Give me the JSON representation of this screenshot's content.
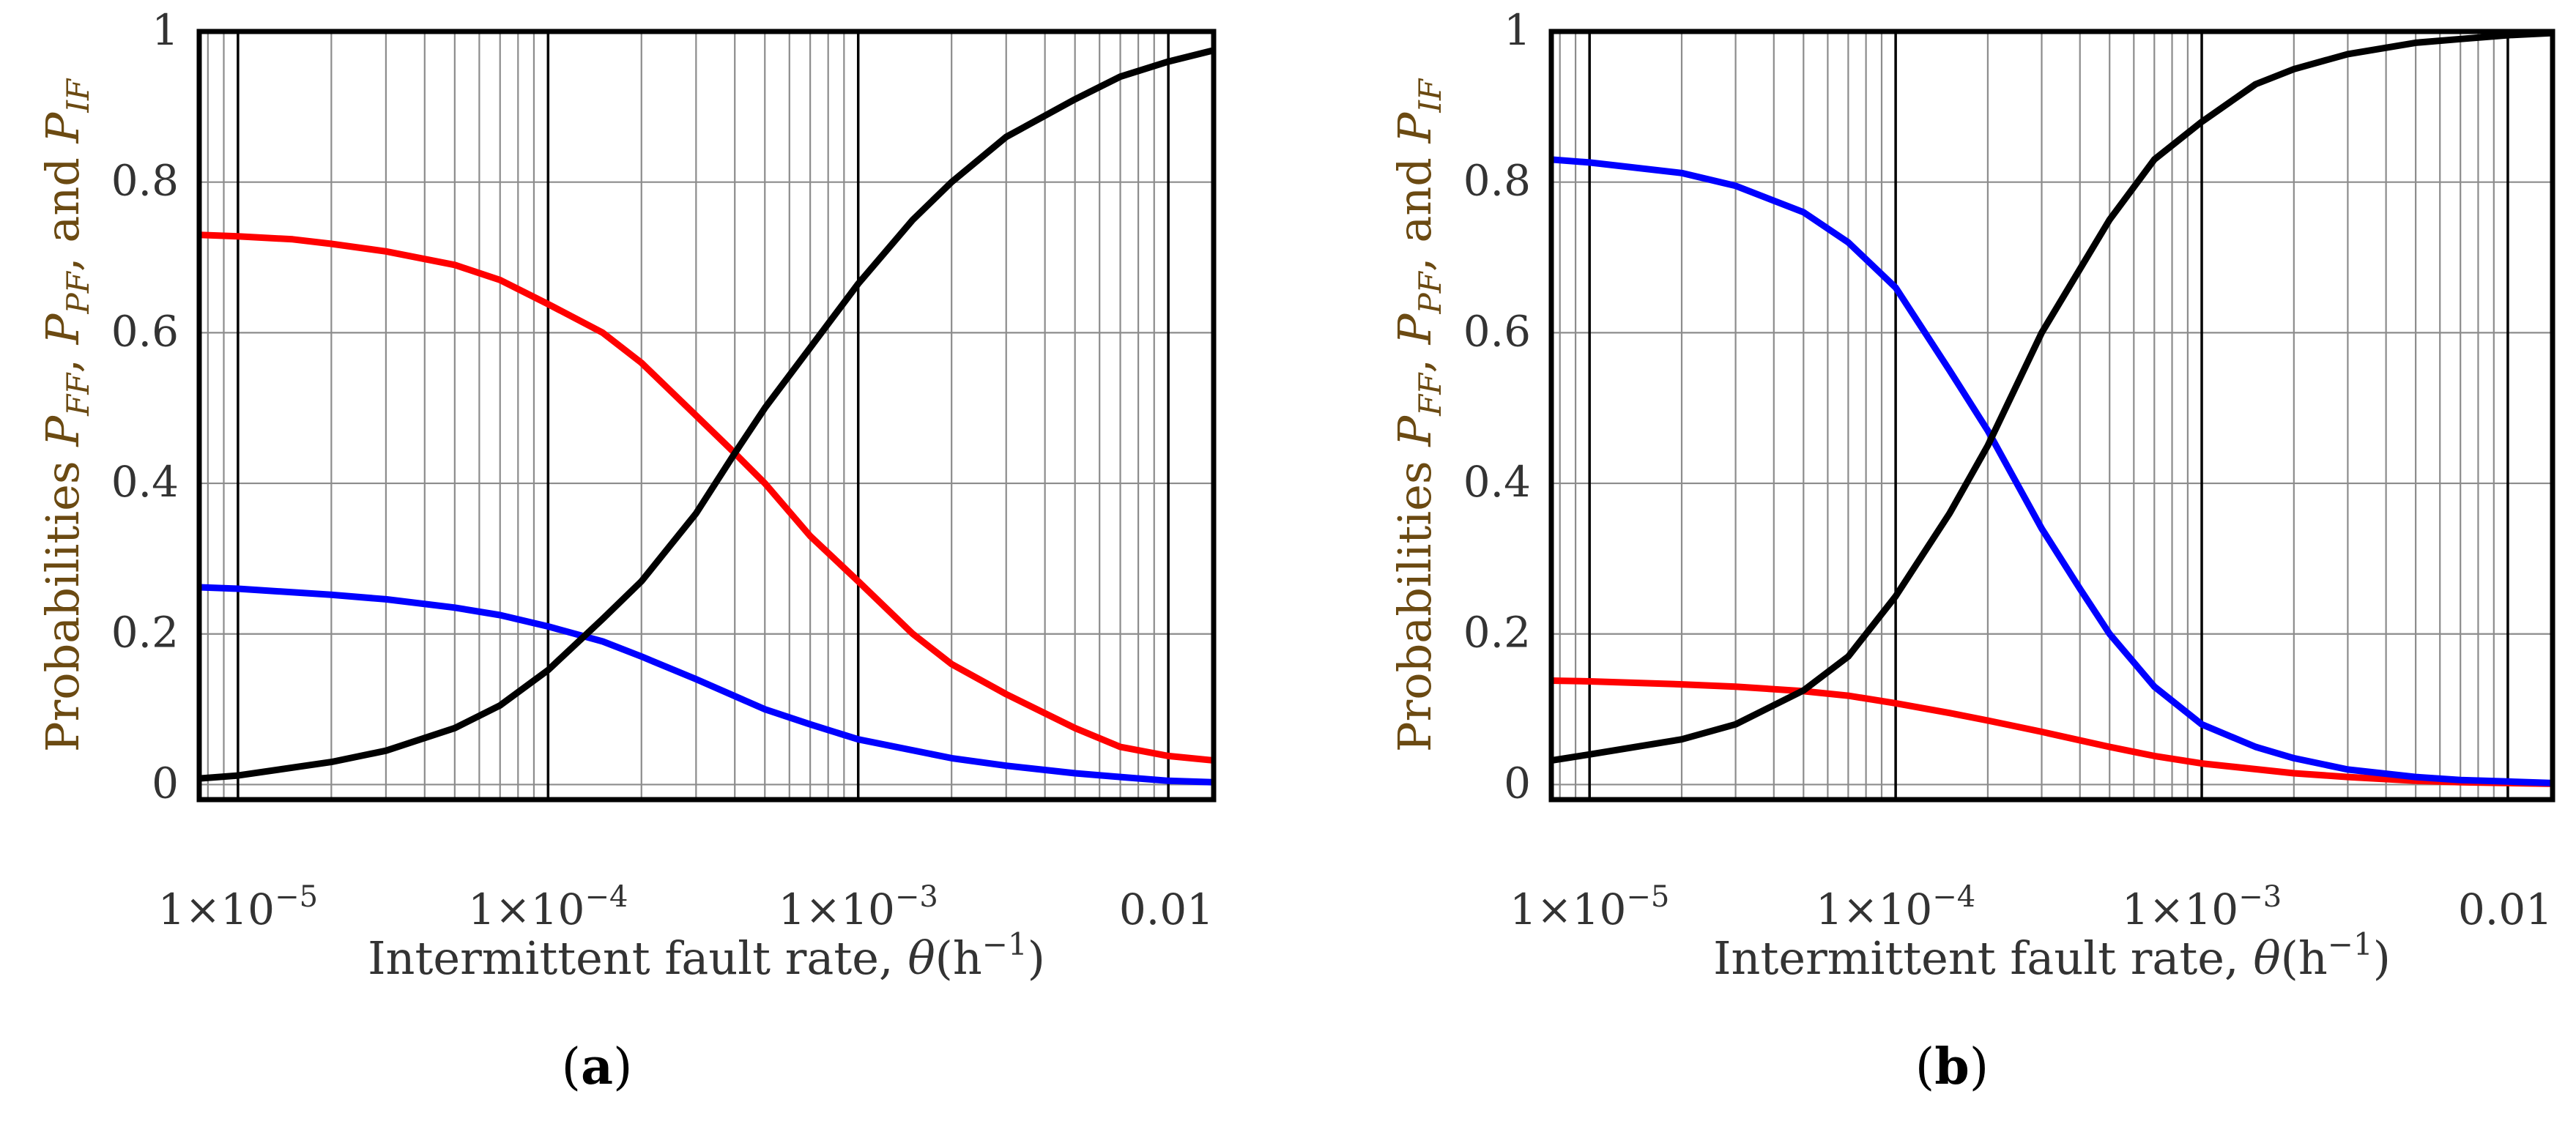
{
  "figure": {
    "background": "#ffffff",
    "frame_color": "#000000",
    "grid_color": "#8c8c8c",
    "label_color": "#333333"
  },
  "chart_data": [
    {
      "panel_label": "(a)",
      "panel_letter": "a",
      "type": "line",
      "xscale": "log",
      "xlim": [
        7.5e-06,
        0.014
      ],
      "ylim": [
        -0.02,
        1.0
      ],
      "grid": true,
      "xlabel": "Intermittent fault rate, θ(h⁻¹)",
      "xlabel_text": "Intermittent fault rate, ",
      "xlabel_symbol": "θ",
      "xlabel_unit": "(h",
      "xlabel_exp": "−1",
      "xlabel_close": ")",
      "ylabel_prefix": "Probabilities ",
      "ylabel_vars": [
        "P",
        "P",
        "P"
      ],
      "ylabel_subs": [
        "FF",
        "PF",
        "IF"
      ],
      "ylabel_seps": [
        ", ",
        ", and "
      ],
      "ylabel_color": "#6b4a12",
      "yticks": [
        {
          "value": 0,
          "label": "0"
        },
        {
          "value": 0.2,
          "label": "0.2"
        },
        {
          "value": 0.4,
          "label": "0.4"
        },
        {
          "value": 0.6,
          "label": "0.6"
        },
        {
          "value": 0.8,
          "label": "0.8"
        },
        {
          "value": 1,
          "label": "1"
        }
      ],
      "xticks": [
        {
          "value": 1e-05,
          "mantissa": "1×10",
          "exp": "−5"
        },
        {
          "value": 0.0001,
          "mantissa": "1×10",
          "exp": "−4"
        },
        {
          "value": 0.001,
          "mantissa": "1×10",
          "exp": "−3"
        },
        {
          "value": 0.01,
          "mantissa": "0.01",
          "exp": ""
        }
      ],
      "series": [
        {
          "name": "P_FF",
          "color": "#ff0000",
          "x": [
            7.5e-06,
            1e-05,
            1.5e-05,
            2e-05,
            3e-05,
            5e-05,
            7e-05,
            0.0001,
            0.00015,
            0.0002,
            0.0003,
            0.0004,
            0.0005,
            0.0007,
            0.001,
            0.0015,
            0.002,
            0.003,
            0.005,
            0.007,
            0.01,
            0.014
          ],
          "y": [
            0.73,
            0.728,
            0.724,
            0.718,
            0.708,
            0.69,
            0.67,
            0.638,
            0.6,
            0.56,
            0.49,
            0.44,
            0.4,
            0.33,
            0.27,
            0.2,
            0.16,
            0.12,
            0.075,
            0.05,
            0.038,
            0.032
          ]
        },
        {
          "name": "P_PF",
          "color": "#0000ff",
          "x": [
            7.5e-06,
            1e-05,
            2e-05,
            3e-05,
            5e-05,
            7e-05,
            0.0001,
            0.00015,
            0.0002,
            0.0003,
            0.0005,
            0.0007,
            0.001,
            0.002,
            0.003,
            0.005,
            0.007,
            0.01,
            0.014
          ],
          "y": [
            0.262,
            0.26,
            0.252,
            0.246,
            0.235,
            0.225,
            0.21,
            0.19,
            0.17,
            0.14,
            0.1,
            0.08,
            0.06,
            0.035,
            0.025,
            0.015,
            0.01,
            0.005,
            0.003
          ]
        },
        {
          "name": "P_IF",
          "color": "#000000",
          "x": [
            7.5e-06,
            1e-05,
            2e-05,
            3e-05,
            5e-05,
            7e-05,
            0.0001,
            0.00015,
            0.0002,
            0.0003,
            0.0004,
            0.0005,
            0.0007,
            0.001,
            0.0015,
            0.002,
            0.003,
            0.005,
            0.007,
            0.01,
            0.014
          ],
          "y": [
            0.008,
            0.012,
            0.03,
            0.045,
            0.075,
            0.105,
            0.152,
            0.22,
            0.27,
            0.36,
            0.44,
            0.5,
            0.58,
            0.665,
            0.75,
            0.8,
            0.86,
            0.91,
            0.94,
            0.96,
            0.975
          ]
        }
      ]
    },
    {
      "panel_label": "(b)",
      "panel_letter": "b",
      "type": "line",
      "xscale": "log",
      "xlim": [
        7.5e-06,
        0.014
      ],
      "ylim": [
        -0.02,
        1.0
      ],
      "grid": true,
      "xlabel": "Intermittent fault rate, θ(h⁻¹)",
      "xlabel_text": "Intermittent fault rate, ",
      "xlabel_symbol": "θ",
      "xlabel_unit": "(h",
      "xlabel_exp": "−1",
      "xlabel_close": ")",
      "ylabel_prefix": "Probabilities ",
      "ylabel_vars": [
        "P",
        "P",
        "P"
      ],
      "ylabel_subs": [
        "FF",
        "PF",
        "IF"
      ],
      "ylabel_seps": [
        ", ",
        ", and "
      ],
      "ylabel_color": "#6b4a12",
      "yticks": [
        {
          "value": 0,
          "label": "0"
        },
        {
          "value": 0.2,
          "label": "0.2"
        },
        {
          "value": 0.4,
          "label": "0.4"
        },
        {
          "value": 0.6,
          "label": "0.6"
        },
        {
          "value": 0.8,
          "label": "0.8"
        },
        {
          "value": 1,
          "label": "1"
        }
      ],
      "xticks": [
        {
          "value": 1e-05,
          "mantissa": "1×10",
          "exp": "−5"
        },
        {
          "value": 0.0001,
          "mantissa": "1×10",
          "exp": "−4"
        },
        {
          "value": 0.001,
          "mantissa": "1×10",
          "exp": "−3"
        },
        {
          "value": 0.01,
          "mantissa": "0.01",
          "exp": ""
        }
      ],
      "series": [
        {
          "name": "P_FF",
          "color": "#ff0000",
          "x": [
            7.5e-06,
            1e-05,
            2e-05,
            3e-05,
            5e-05,
            7e-05,
            0.0001,
            0.00015,
            0.0002,
            0.0003,
            0.0005,
            0.0007,
            0.001,
            0.002,
            0.003,
            0.005,
            0.007,
            0.01,
            0.014
          ],
          "y": [
            0.138,
            0.137,
            0.133,
            0.13,
            0.124,
            0.118,
            0.108,
            0.095,
            0.085,
            0.07,
            0.05,
            0.038,
            0.028,
            0.015,
            0.01,
            0.005,
            0.003,
            0.002,
            0.001
          ]
        },
        {
          "name": "P_PF",
          "color": "#0000ff",
          "x": [
            7.5e-06,
            1e-05,
            2e-05,
            3e-05,
            5e-05,
            7e-05,
            0.0001,
            0.00015,
            0.0002,
            0.0003,
            0.0004,
            0.0005,
            0.0007,
            0.001,
            0.0015,
            0.002,
            0.003,
            0.005,
            0.007,
            0.01,
            0.014
          ],
          "y": [
            0.83,
            0.826,
            0.812,
            0.795,
            0.76,
            0.72,
            0.66,
            0.55,
            0.47,
            0.34,
            0.26,
            0.2,
            0.13,
            0.08,
            0.05,
            0.035,
            0.02,
            0.01,
            0.006,
            0.004,
            0.002
          ]
        },
        {
          "name": "P_IF",
          "color": "#000000",
          "x": [
            7.5e-06,
            1e-05,
            2e-05,
            3e-05,
            5e-05,
            7e-05,
            0.0001,
            0.00015,
            0.0002,
            0.0003,
            0.0005,
            0.0007,
            0.001,
            0.0015,
            0.002,
            0.003,
            0.005,
            0.007,
            0.01,
            0.014
          ],
          "y": [
            0.032,
            0.04,
            0.06,
            0.08,
            0.125,
            0.17,
            0.25,
            0.36,
            0.45,
            0.6,
            0.75,
            0.83,
            0.88,
            0.93,
            0.95,
            0.97,
            0.985,
            0.99,
            0.995,
            0.998
          ]
        }
      ]
    }
  ]
}
